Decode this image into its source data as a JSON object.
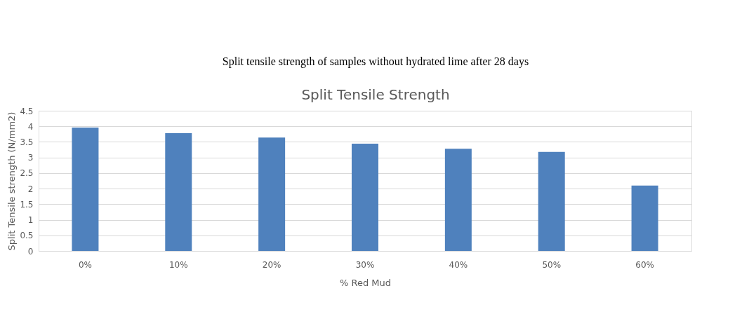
{
  "chart_data": {
    "type": "bar",
    "title": "Split Tensile Strength",
    "xlabel": "% Red Mud",
    "ylabel": "Split Tensile strength (N/mm2)",
    "annotations": [
      "Split tensile strength of samples without hydrated lime after 28 days"
    ],
    "categories": [
      "0%",
      "10%",
      "20%",
      "30%",
      "40%",
      "50%",
      "60%"
    ],
    "values": [
      3.96,
      3.78,
      3.64,
      3.44,
      3.28,
      3.18,
      2.1
    ],
    "color": "#4f81bd",
    "ylim": [
      0,
      4.5
    ],
    "yticks": [
      0,
      0.5,
      1,
      1.5,
      2,
      2.5,
      3,
      3.5,
      4,
      4.5
    ],
    "grid": "y"
  }
}
